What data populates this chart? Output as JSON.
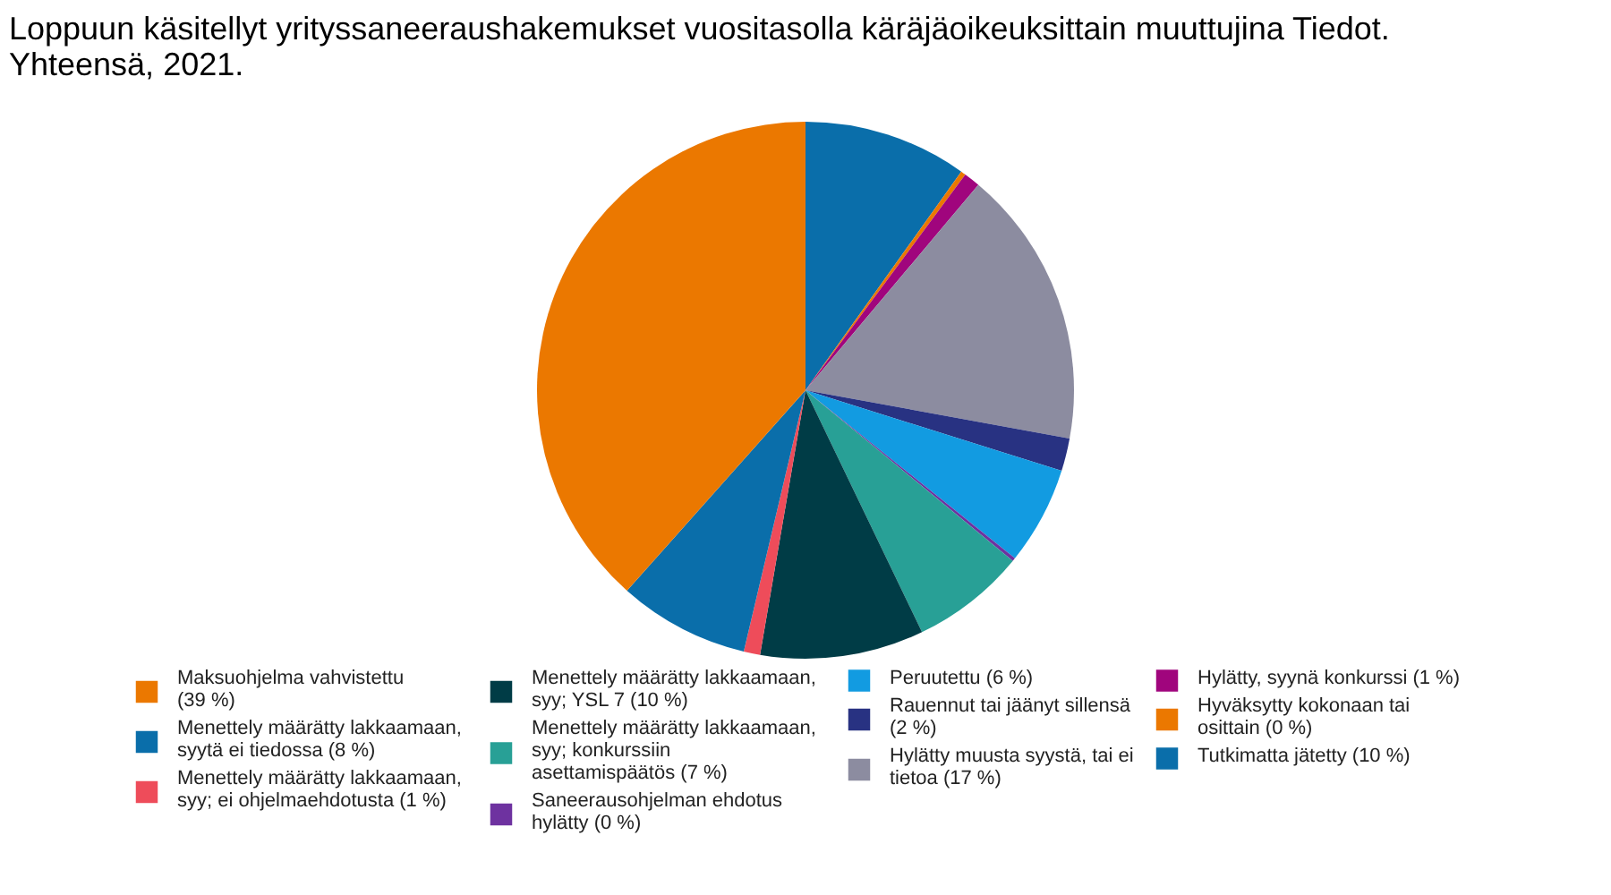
{
  "chart_data": {
    "type": "pie",
    "title": "Loppuun käsitellyt yrityssaneeraushakemukset vuositasolla käräjäoikeuksittain muuttujina Tiedot. Yhteensä, 2021.",
    "categories": [
      "Tutkimatta jätetty",
      "Hyväksytty kokonaan tai osittain",
      "Hylätty, syynä konkurssi",
      "Hylätty muusta syystä, tai ei tietoa",
      "Rauennut tai jäänyt sillensä",
      "Peruutettu",
      "Saneerausohjelman ehdotus hylätty",
      "Menettely määrätty lakkaamaan, syy; konkurssiin asettamispäätös",
      "Menettely määrätty lakkaamaan, syy; YSL 7",
      "Menettely määrätty lakkaamaan, syy; ei ohjelmaehdotusta",
      "Menettely määrätty lakkaamaan, syytä ei tiedossa",
      "Maksuohjelma vahvistettu"
    ],
    "values": [
      10,
      0.3,
      1,
      17,
      2,
      6,
      0.2,
      7,
      10,
      1,
      8,
      39
    ],
    "value_labels": [
      "(10 %)",
      "(0 %)",
      "(1 %)",
      "(17 %)",
      "(2 %)",
      "(6 %)",
      "(0 %)",
      "(7 %)",
      "(10 %)",
      "(1 %)",
      "(8 %)",
      "(39 %)"
    ],
    "colors": [
      "#0a6eaa",
      "#eb7800",
      "#a0057d",
      "#8c8ca0",
      "#283282",
      "#129be1",
      "#6e32a0",
      "#28a096",
      "#003c46",
      "#ee4c5a",
      "#0a6eaa",
      "#eb7800"
    ],
    "legend": "bottom"
  }
}
